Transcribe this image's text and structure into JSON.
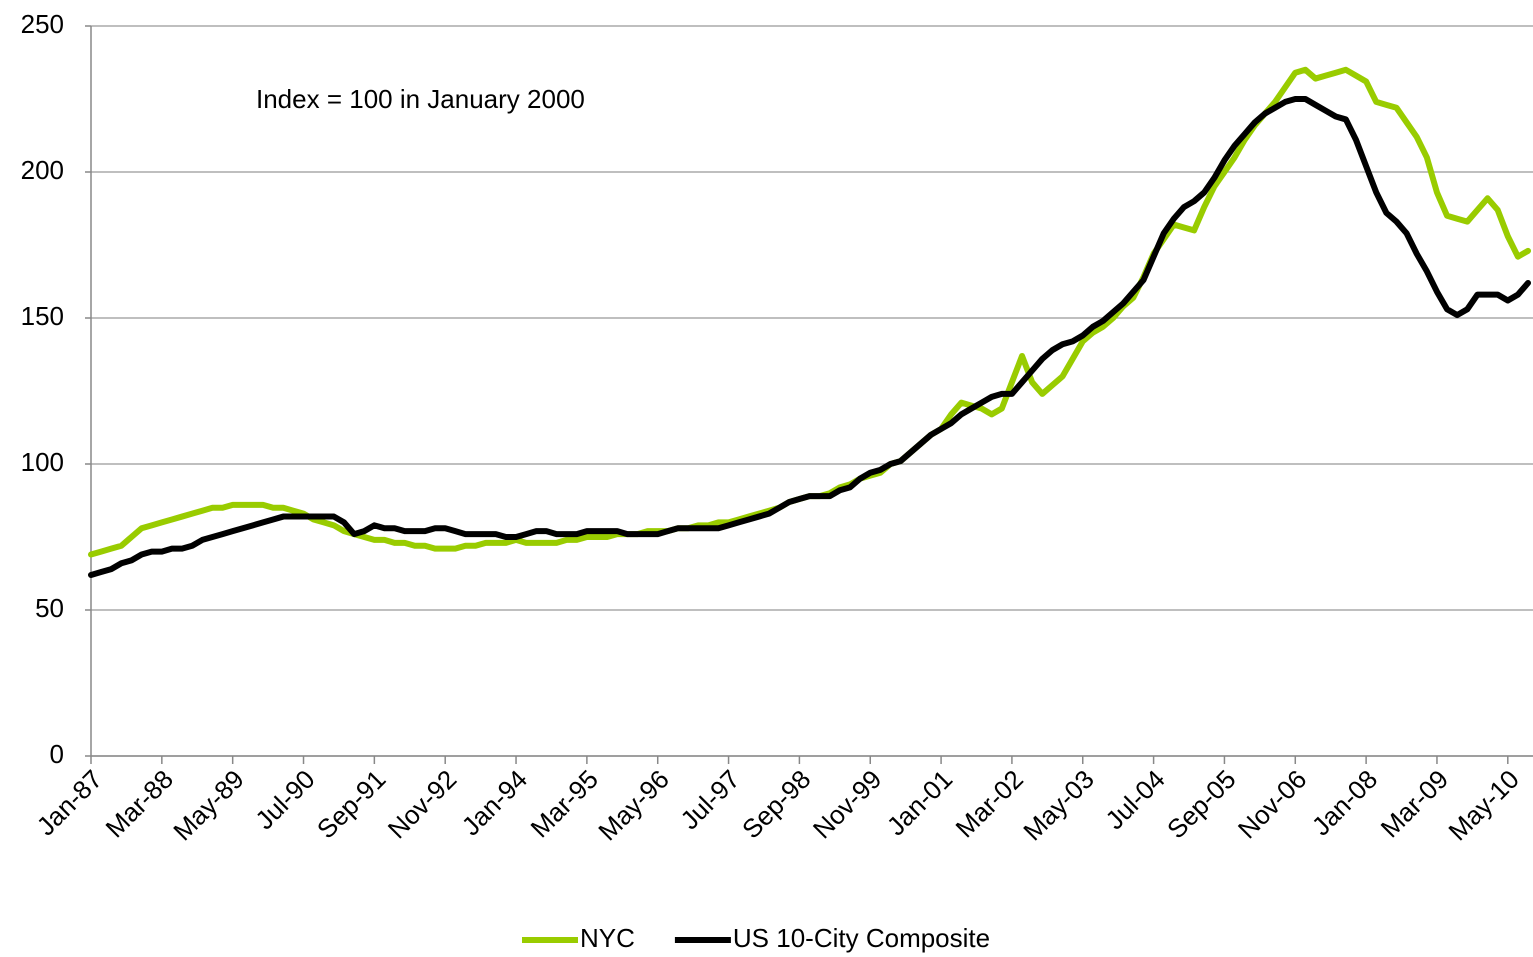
{
  "chart_data": {
    "type": "line",
    "annotation": "Index = 100 in January 2000",
    "ylim": [
      0,
      250
    ],
    "yticks": [
      0,
      50,
      100,
      150,
      200,
      250
    ],
    "grid": true,
    "legend": "bottom",
    "categories": [
      "Jan-87",
      null,
      null,
      null,
      null,
      null,
      null,
      "Mar-88",
      null,
      null,
      null,
      null,
      null,
      null,
      "May-89",
      null,
      null,
      null,
      null,
      null,
      null,
      "Jul-90",
      null,
      null,
      null,
      null,
      null,
      null,
      "Sep-91",
      null,
      null,
      null,
      null,
      null,
      null,
      "Nov-92",
      null,
      null,
      null,
      null,
      null,
      null,
      "Jan-94",
      null,
      null,
      null,
      null,
      null,
      null,
      "Mar-95",
      null,
      null,
      null,
      null,
      null,
      null,
      "May-96",
      null,
      null,
      null,
      null,
      null,
      null,
      "Jul-97",
      null,
      null,
      null,
      null,
      null,
      null,
      "Sep-98",
      null,
      null,
      null,
      null,
      null,
      null,
      "Nov-99",
      null,
      null,
      null,
      null,
      null,
      null,
      "Jan-01",
      null,
      null,
      null,
      null,
      null,
      null,
      "Mar-02",
      null,
      null,
      null,
      null,
      null,
      null,
      "May-03",
      null,
      null,
      null,
      null,
      null,
      null,
      "Jul-04",
      null,
      null,
      null,
      null,
      null,
      null,
      "Sep-05",
      null,
      null,
      null,
      null,
      null,
      null,
      "Nov-06",
      null,
      null,
      null,
      null,
      null,
      null,
      "Jan-08",
      null,
      null,
      null,
      null,
      null,
      null,
      "Mar-09",
      null,
      null,
      null,
      null,
      null,
      null,
      "May-10",
      null,
      null
    ],
    "series": [
      {
        "name": "NYC",
        "color": "#99cc00",
        "values": [
          69,
          70,
          71,
          72,
          75,
          78,
          79,
          80,
          81,
          82,
          83,
          84,
          85,
          85,
          86,
          86,
          86,
          86,
          85,
          85,
          84,
          83,
          81,
          80,
          79,
          77,
          76,
          75,
          74,
          74,
          73,
          73,
          72,
          72,
          71,
          71,
          71,
          72,
          72,
          73,
          73,
          73,
          74,
          73,
          73,
          73,
          73,
          74,
          74,
          75,
          75,
          75,
          76,
          76,
          76,
          77,
          77,
          77,
          78,
          78,
          79,
          79,
          80,
          80,
          81,
          82,
          83,
          84,
          85,
          87,
          88,
          89,
          89,
          90,
          92,
          93,
          95,
          96,
          97,
          100,
          101,
          104,
          107,
          110,
          112,
          117,
          121,
          120,
          119,
          117,
          119,
          128,
          137,
          128,
          124,
          127,
          130,
          136,
          142,
          145,
          147,
          150,
          154,
          157,
          164,
          172,
          177,
          182,
          181,
          180,
          188,
          195,
          200,
          205,
          211,
          216,
          220,
          224,
          229,
          234,
          235,
          232,
          233,
          234,
          235,
          233,
          231,
          224,
          223,
          222,
          217,
          212,
          205,
          193,
          185,
          184,
          183,
          187,
          191,
          187,
          178,
          171,
          173
        ]
      },
      {
        "name": "US 10-City Composite",
        "color": "#000000",
        "values": [
          62,
          63,
          64,
          66,
          67,
          69,
          70,
          70,
          71,
          71,
          72,
          74,
          75,
          76,
          77,
          78,
          79,
          80,
          81,
          82,
          82,
          82,
          82,
          82,
          82,
          80,
          76,
          77,
          79,
          78,
          78,
          77,
          77,
          77,
          78,
          78,
          77,
          76,
          76,
          76,
          76,
          75,
          75,
          76,
          77,
          77,
          76,
          76,
          76,
          77,
          77,
          77,
          77,
          76,
          76,
          76,
          76,
          77,
          78,
          78,
          78,
          78,
          78,
          79,
          80,
          81,
          82,
          83,
          85,
          87,
          88,
          89,
          89,
          89,
          91,
          92,
          95,
          97,
          98,
          100,
          101,
          104,
          107,
          110,
          112,
          114,
          117,
          119,
          121,
          123,
          124,
          124,
          128,
          132,
          136,
          139,
          141,
          142,
          144,
          147,
          149,
          152,
          155,
          159,
          163,
          171,
          179,
          184,
          188,
          190,
          193,
          198,
          204,
          209,
          213,
          217,
          220,
          222,
          224,
          225,
          225,
          223,
          221,
          219,
          218,
          211,
          202,
          193,
          186,
          183,
          179,
          172,
          166,
          159,
          153,
          151,
          153,
          158,
          158,
          158,
          156,
          158,
          162
        ]
      }
    ]
  }
}
